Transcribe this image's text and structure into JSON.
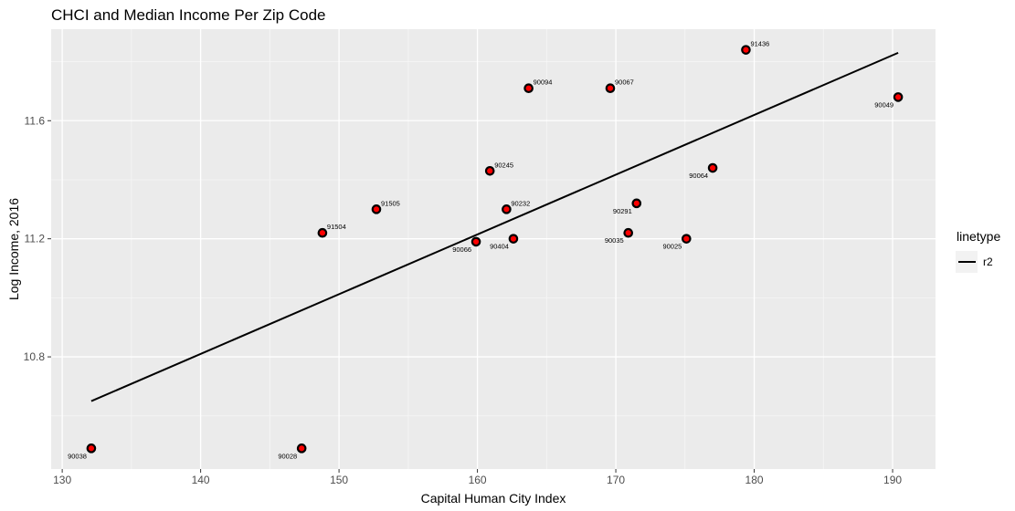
{
  "chart_data": {
    "type": "scatter",
    "title": "CHCI and Median Income Per Zip Code",
    "xlabel": "Capital Human City Index",
    "ylabel": "Log Income, 2016",
    "xlim": [
      129.2,
      193.1
    ],
    "ylim": [
      10.42,
      11.91
    ],
    "xticks": [
      130,
      140,
      150,
      160,
      170,
      180,
      190
    ],
    "xtick_labels": [
      "130",
      "140",
      "150",
      "160",
      "170",
      "180",
      "190"
    ],
    "yticks": [
      10.8,
      11.2,
      11.6
    ],
    "ytick_labels": [
      "10.8",
      "11.2",
      "11.6"
    ],
    "grid": true,
    "colors": {
      "panel": "#ebebeb",
      "grid_major": "#ffffff",
      "point_fill": "#ff0000",
      "point_stroke": "#000000",
      "line": "#000000"
    },
    "legend": {
      "title": "linetype",
      "position": "right",
      "entries": [
        {
          "label": "r2"
        }
      ]
    },
    "points": [
      {
        "label": "90038",
        "x": 132.1,
        "y": 10.49
      },
      {
        "label": "90028",
        "x": 147.3,
        "y": 10.49
      },
      {
        "label": "91504",
        "x": 148.8,
        "y": 11.22
      },
      {
        "label": "91505",
        "x": 152.7,
        "y": 11.3
      },
      {
        "label": "90066",
        "x": 159.9,
        "y": 11.19
      },
      {
        "label": "90245",
        "x": 160.9,
        "y": 11.43
      },
      {
        "label": "90232",
        "x": 162.1,
        "y": 11.3
      },
      {
        "label": "90404",
        "x": 162.6,
        "y": 11.2
      },
      {
        "label": "90094",
        "x": 163.7,
        "y": 11.71
      },
      {
        "label": "90067",
        "x": 169.6,
        "y": 11.71
      },
      {
        "label": "90035",
        "x": 170.9,
        "y": 11.22
      },
      {
        "label": "90291",
        "x": 171.5,
        "y": 11.32
      },
      {
        "label": "90025",
        "x": 175.1,
        "y": 11.2
      },
      {
        "label": "90064",
        "x": 177.0,
        "y": 11.44
      },
      {
        "label": "91436",
        "x": 179.4,
        "y": 11.84
      },
      {
        "label": "90049",
        "x": 190.4,
        "y": 11.68
      }
    ],
    "series": [
      {
        "name": "r2",
        "type": "line",
        "x": [
          132.1,
          190.4
        ],
        "y": [
          10.65,
          11.83
        ]
      }
    ]
  }
}
